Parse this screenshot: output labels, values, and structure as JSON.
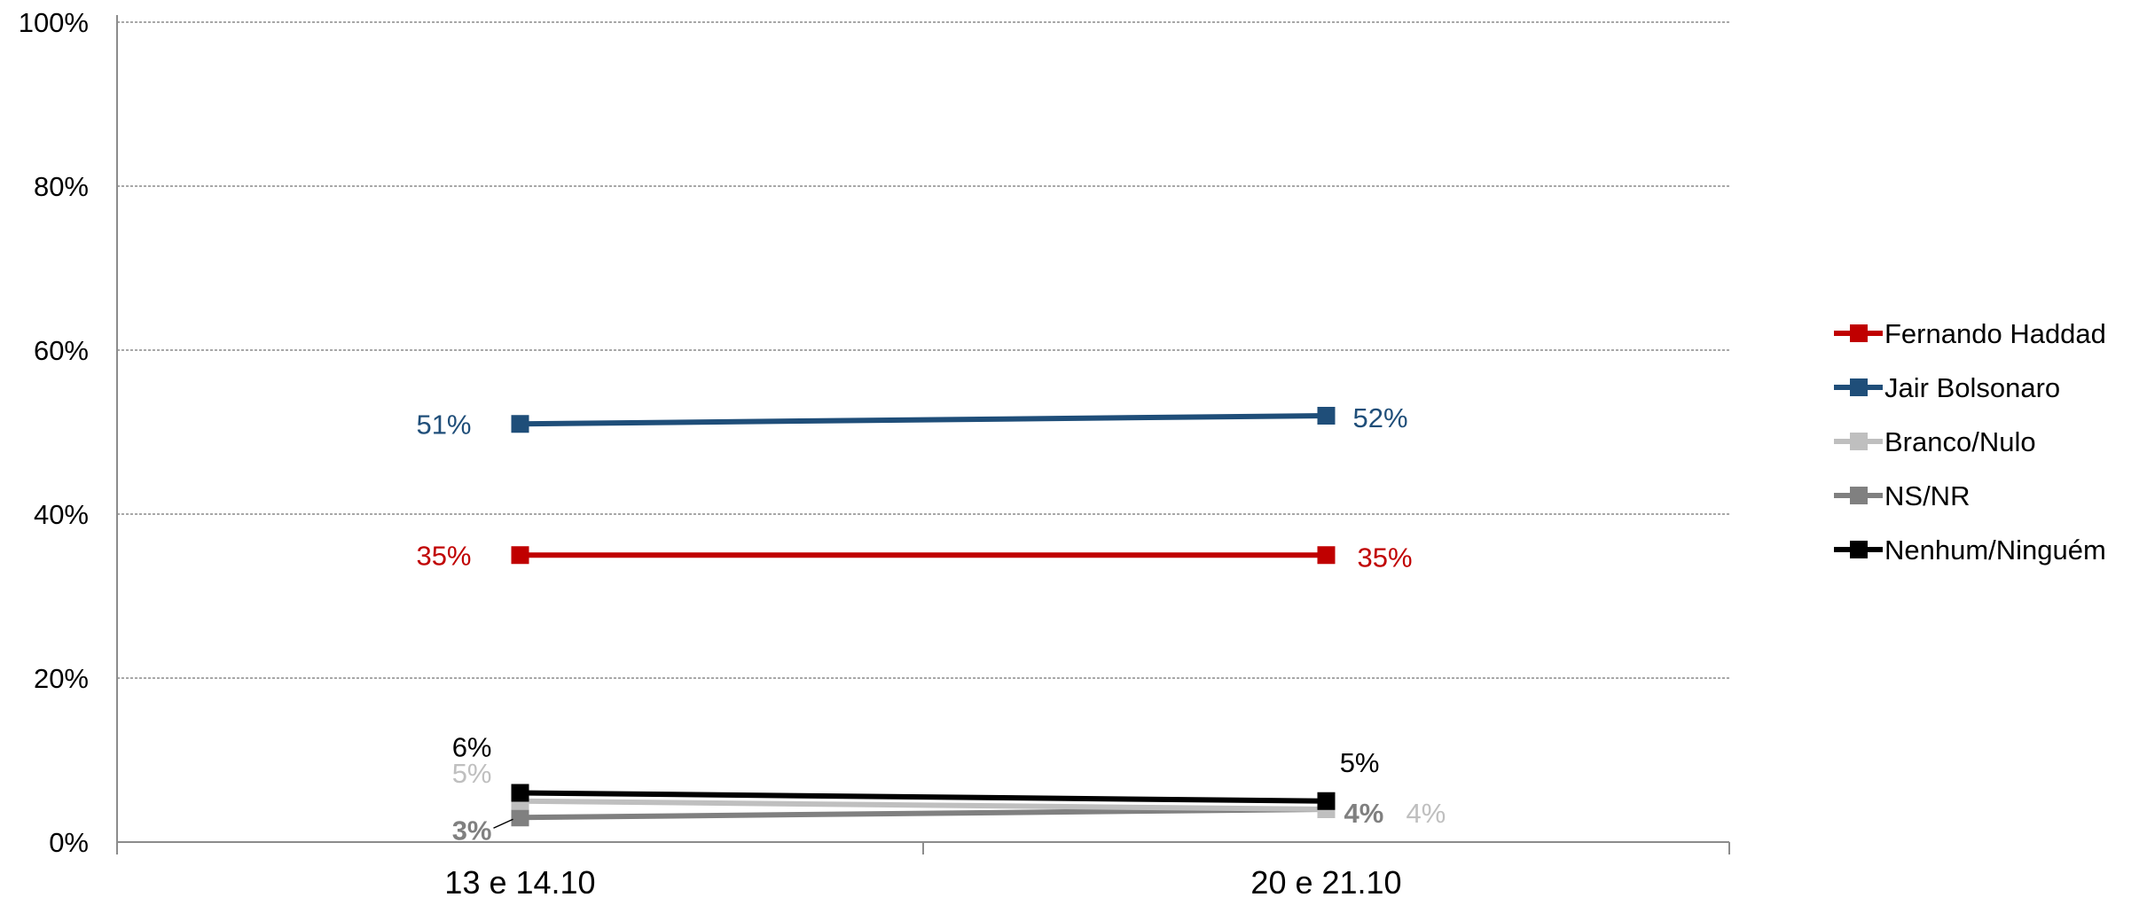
{
  "chart_data": {
    "type": "line",
    "categories": [
      "13 e 14.10",
      "20 e 21.10"
    ],
    "ylim": [
      0,
      100
    ],
    "y_ticks": [
      "0%",
      "20%",
      "40%",
      "60%",
      "80%",
      "100%"
    ],
    "grid": true,
    "legend_position": "right",
    "series": [
      {
        "name": "Fernando Haddad",
        "values": [
          35,
          35
        ],
        "labels": [
          "35%",
          "35%"
        ],
        "color": "#C00000"
      },
      {
        "name": "Jair Bolsonaro",
        "values": [
          51,
          52
        ],
        "labels": [
          "51%",
          "52%"
        ],
        "color": "#1F4E79"
      },
      {
        "name": "Branco/Nulo",
        "values": [
          5,
          4
        ],
        "labels": [
          "5%",
          "4%"
        ],
        "color": "#BFBFBF"
      },
      {
        "name": "NS/NR",
        "values": [
          3,
          4
        ],
        "labels": [
          "3%",
          "4%"
        ],
        "color": "#808080"
      },
      {
        "name": "Nenhum/Ninguém",
        "values": [
          6,
          5
        ],
        "labels": [
          "6%",
          "5%"
        ],
        "color": "#000000"
      }
    ]
  }
}
